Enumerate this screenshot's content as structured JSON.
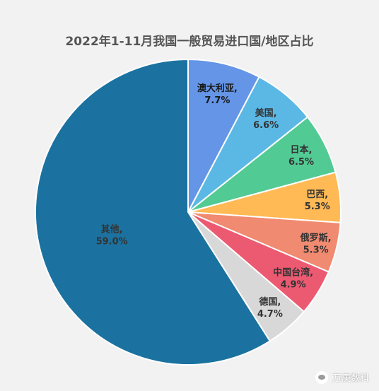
{
  "chart_data": {
    "type": "pie",
    "title": "2022年1-11月我国一般贸易进口国/地区占比",
    "slices": [
      {
        "label": "澳大利亚,",
        "pct_text": "7.7%",
        "value": 7.7,
        "color": "#6495e6"
      },
      {
        "label": "美国,",
        "pct_text": "6.6%",
        "value": 6.6,
        "color": "#5bb8e4"
      },
      {
        "label": "日本,",
        "pct_text": "6.5%",
        "value": 6.5,
        "color": "#52ca94"
      },
      {
        "label": "巴西,",
        "pct_text": "5.3%",
        "value": 5.3,
        "color": "#ffb955"
      },
      {
        "label": "俄罗斯,",
        "pct_text": "5.3%",
        "value": 5.3,
        "color": "#f08a70"
      },
      {
        "label": "中国台湾,",
        "pct_text": "4.9%",
        "value": 4.9,
        "color": "#ec5a72"
      },
      {
        "label": "德国,",
        "pct_text": "4.7%",
        "value": 4.7,
        "color": "#d8d8d8"
      },
      {
        "label": "其他,",
        "pct_text": "59.0%",
        "value": 59.0,
        "color": "#1b72a0"
      }
    ]
  },
  "watermark": {
    "text": "万庚数科"
  }
}
